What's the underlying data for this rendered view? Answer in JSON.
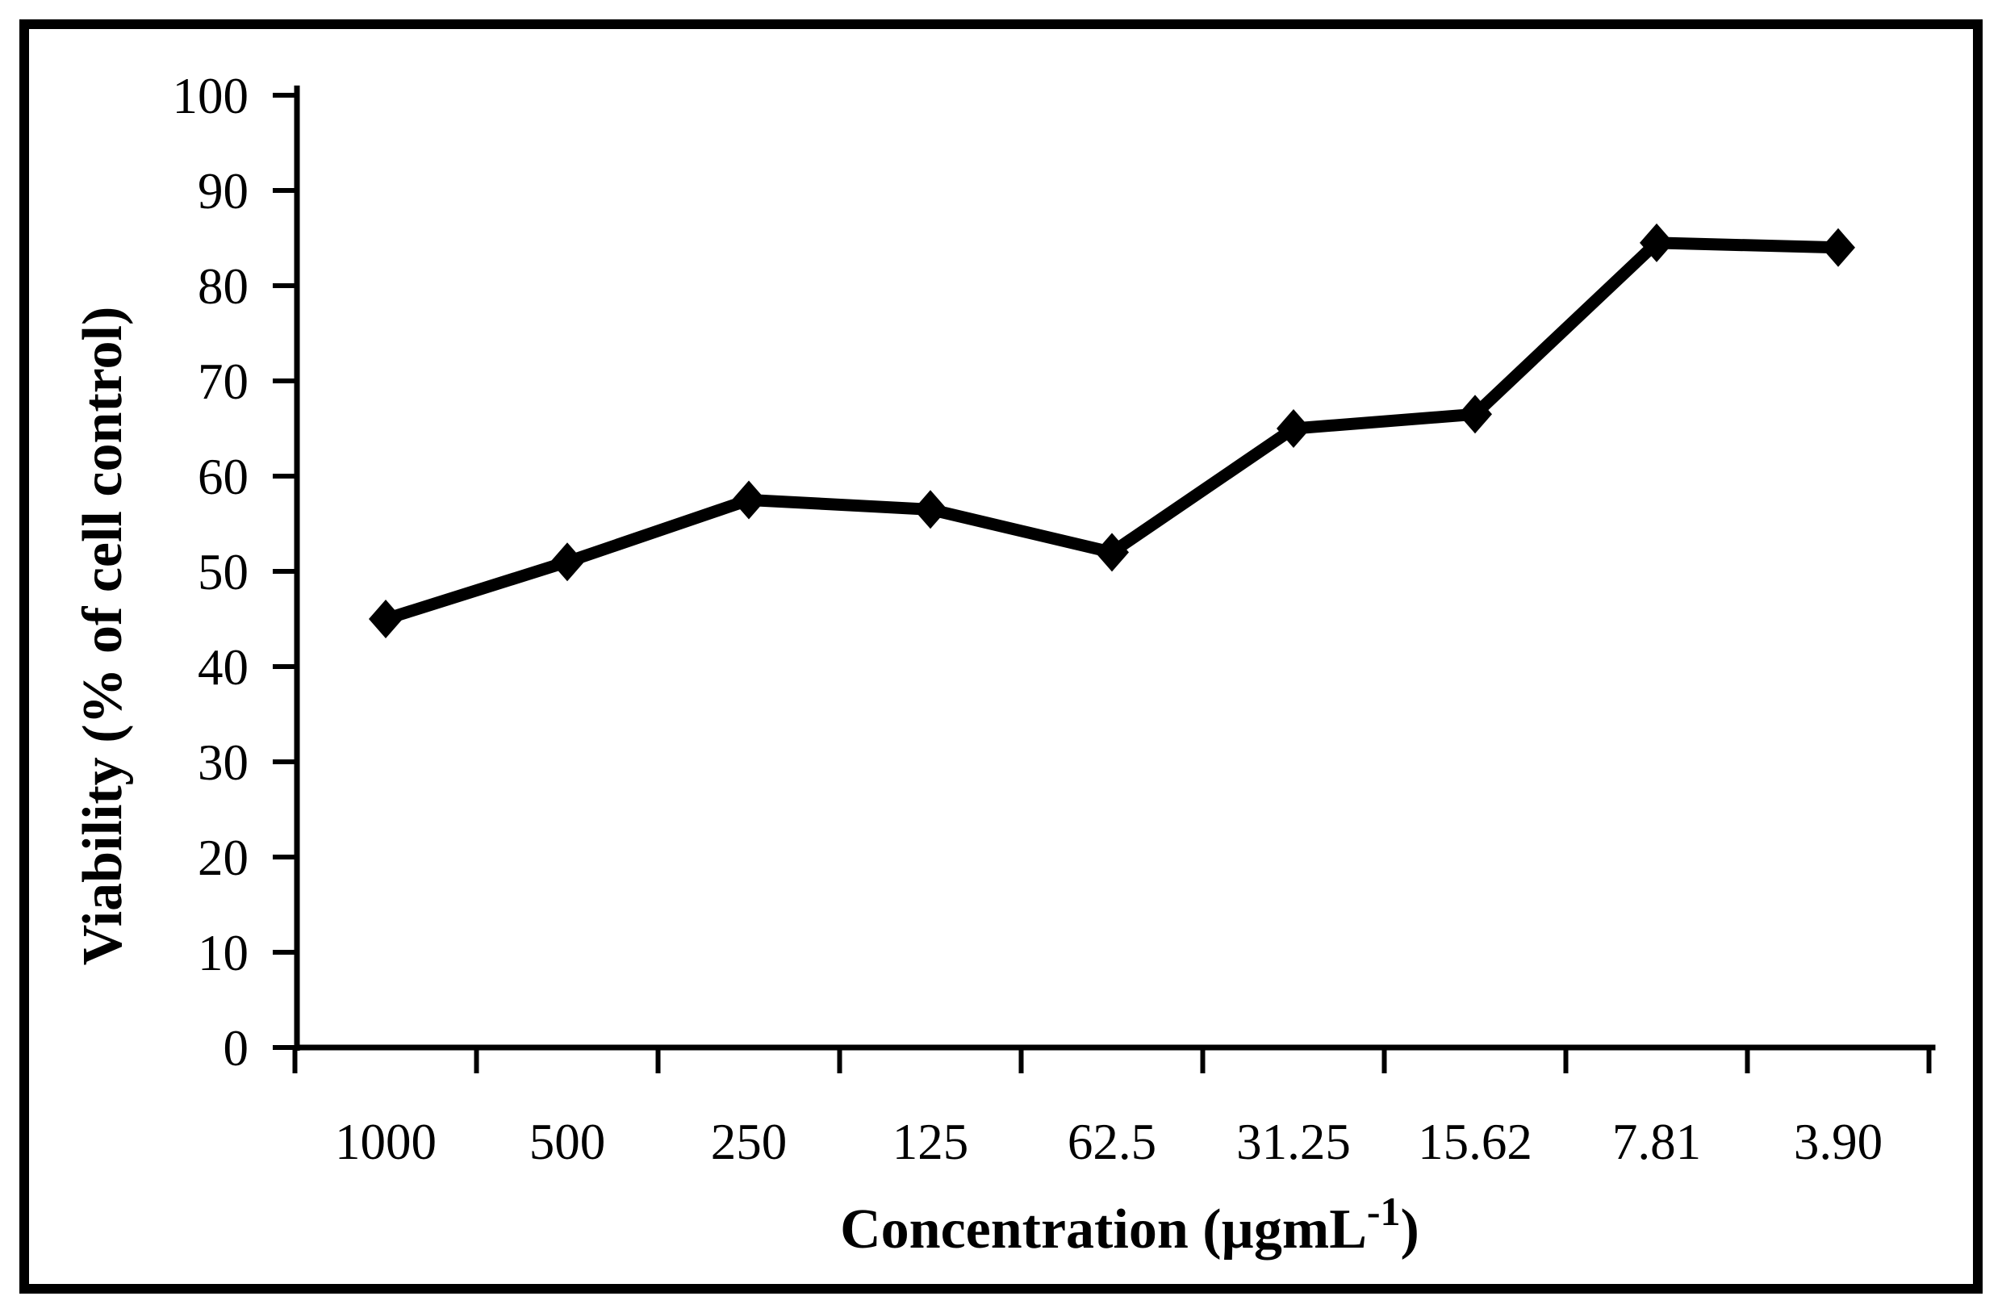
{
  "figure": {
    "background_color": "#ffffff",
    "border_color": "#000000",
    "foreground_color": "#000000"
  },
  "chart_data": {
    "type": "line",
    "title": "",
    "categories": [
      "1000",
      "500",
      "250",
      "125",
      "62.5",
      "31.25",
      "15.62",
      "7.81",
      "3.90"
    ],
    "values": [
      45,
      51,
      57.5,
      56.5,
      52,
      65,
      66.5,
      84.5,
      84
    ],
    "series_name": "Viability",
    "xlabel": {
      "prefix": "Concentration (µgmL",
      "superscript": "-1",
      "suffix": ")"
    },
    "ylabel": "Viability (% of cell control)",
    "y_ticks": [
      0,
      10,
      20,
      30,
      40,
      50,
      60,
      70,
      80,
      90,
      100
    ],
    "ylim": [
      0,
      100
    ],
    "grid": false,
    "legend_position": "none",
    "line_color": "#000000",
    "marker": "diamond"
  }
}
